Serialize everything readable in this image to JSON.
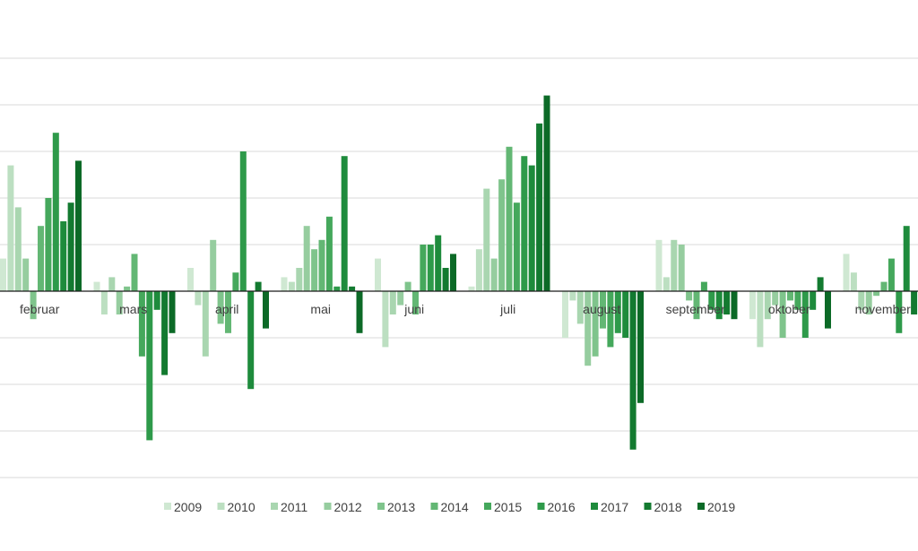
{
  "chart_data": {
    "type": "bar",
    "categories": [
      "februar",
      "mars",
      "april",
      "mai",
      "juni",
      "juli",
      "august",
      "september",
      "oktober",
      "november"
    ],
    "series": [
      {
        "name": "2009",
        "color": "#cfe8d2",
        "values": [
          3.5,
          1.0,
          2.5,
          1.5,
          3.5,
          0.5,
          -5.0,
          5.5,
          -3.0,
          4.0
        ]
      },
      {
        "name": "2010",
        "color": "#bcdfc1",
        "values": [
          13.5,
          -2.5,
          -1.5,
          1.0,
          -6.0,
          4.5,
          -1.0,
          1.5,
          -6.0,
          2.0
        ]
      },
      {
        "name": "2011",
        "color": "#a9d6b0",
        "values": [
          9.0,
          1.5,
          -7.0,
          2.5,
          -2.5,
          11.0,
          -3.5,
          5.5,
          -3.0,
          -2.0
        ]
      },
      {
        "name": "2012",
        "color": "#96cd9f",
        "values": [
          3.5,
          -2.5,
          5.5,
          7.0,
          -1.5,
          3.5,
          -8.0,
          5.0,
          -1.5,
          -2.5
        ]
      },
      {
        "name": "2013",
        "color": "#7fc48c",
        "values": [
          -3.0,
          0.5,
          -3.5,
          4.5,
          1.0,
          12.0,
          -7.0,
          -1.0,
          -5.0,
          -0.5
        ]
      },
      {
        "name": "2014",
        "color": "#63b774",
        "values": [
          7.0,
          4.0,
          -4.5,
          5.5,
          -2.5,
          15.5,
          -4.0,
          -3.0,
          -1.0,
          1.0
        ]
      },
      {
        "name": "2015",
        "color": "#45a85c",
        "values": [
          10.0,
          -7.0,
          2.0,
          8.0,
          5.0,
          9.5,
          -6.0,
          1.0,
          -2.0,
          3.5
        ]
      },
      {
        "name": "2016",
        "color": "#2e9a4a",
        "values": [
          17.0,
          -16.0,
          15.0,
          0.5,
          5.0,
          14.5,
          -4.5,
          -2.0,
          -5.0,
          -4.5
        ]
      },
      {
        "name": "2017",
        "color": "#1e8b3c",
        "values": [
          7.5,
          -2.0,
          -10.5,
          14.5,
          6.0,
          13.5,
          -5.0,
          -3.0,
          -2.0,
          7.0
        ]
      },
      {
        "name": "2018",
        "color": "#137a30",
        "values": [
          9.5,
          -9.0,
          1.0,
          0.5,
          2.5,
          18.0,
          -17.0,
          -2.5,
          1.5,
          -2.5
        ]
      },
      {
        "name": "2019",
        "color": "#0c6a27",
        "values": [
          14.0,
          -4.5,
          -4.0,
          -4.5,
          4.0,
          21.0,
          -12.0,
          -3.0,
          -4.0,
          1.0
        ]
      }
    ],
    "ylim": [
      -20,
      25
    ],
    "gridlines": true,
    "legend_position": "bottom"
  }
}
